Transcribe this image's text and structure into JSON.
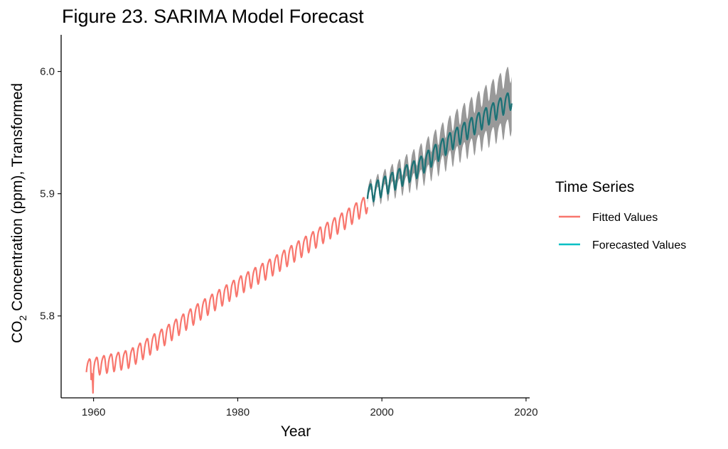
{
  "chart_data": {
    "type": "line",
    "title": "Figure 23. SARIMA Model Forecast",
    "xlabel": "Year",
    "ylabel_parts": [
      "CO",
      "2",
      " Concentration (ppm), Transformed"
    ],
    "xlim": [
      1955.5,
      2020.5
    ],
    "ylim": [
      5.733,
      6.03
    ],
    "x_ticks": [
      1960,
      1980,
      2000,
      2020
    ],
    "y_ticks": [
      5.8,
      5.9,
      6.0
    ],
    "y_tick_labels": [
      "5.8",
      "5.9",
      "6.0"
    ],
    "grid": false,
    "legend": {
      "title": "Time Series",
      "position": "right",
      "entries": [
        {
          "label": "Fitted Values",
          "color": "#F8766D"
        },
        {
          "label": "Forecasted Values",
          "color": "#00BFC4"
        }
      ]
    },
    "series": [
      {
        "name": "Fitted Values",
        "color": "#F8766D",
        "x_start": 1959.0,
        "x_end": 1998.0,
        "trend": [
          [
            1959,
            5.758
          ],
          [
            1965,
            5.766
          ],
          [
            1970,
            5.785
          ],
          [
            1975,
            5.806
          ],
          [
            1980,
            5.825
          ],
          [
            1985,
            5.842
          ],
          [
            1990,
            5.861
          ],
          [
            1995,
            5.88
          ],
          [
            1998,
            5.893
          ]
        ],
        "seasonal_amplitude": 0.0072,
        "anomalies": [
          {
            "x": 1959.7,
            "y": 5.748
          },
          {
            "x": 1959.95,
            "y": 5.737
          }
        ]
      },
      {
        "name": "Forecasted Values",
        "color": "#00BFC4",
        "x_start": 1998.0,
        "x_end": 2018.0,
        "trend": [
          [
            1998,
            5.9
          ],
          [
            2005,
            5.922
          ],
          [
            2010,
            5.946
          ],
          [
            2018,
            5.978
          ]
        ],
        "seasonal_amplitude": 0.0075,
        "interval": {
          "color": "#999999",
          "half_width": [
            [
              1998,
              0.004
            ],
            [
              2018,
              0.022
            ]
          ]
        }
      }
    ]
  }
}
